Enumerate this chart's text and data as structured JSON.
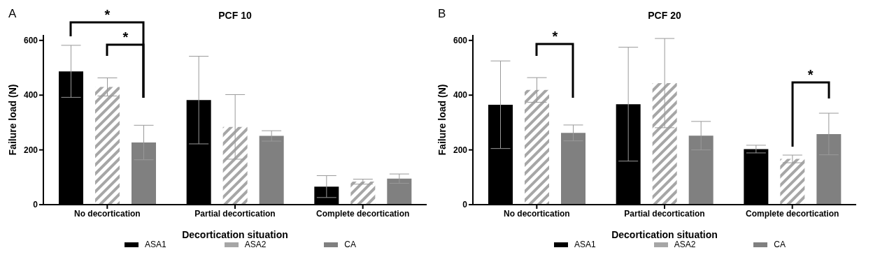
{
  "chart_data": [
    {
      "type": "bar",
      "title": "PCF  10",
      "xlabel": "Decortication situation",
      "ylabel": "Failure load (N)",
      "annotations": [
        "A",
        "*",
        "*"
      ],
      "categories": [
        "No decortication",
        "Partial decortication",
        "Complete decortication"
      ],
      "ylim": [
        0,
        620
      ],
      "yticks": [
        0,
        200,
        400,
        600
      ],
      "legend": "bottom",
      "series": [
        {
          "name": "ASA1",
          "color": "#000000",
          "values": [
            487,
            382,
            66
          ],
          "errors": [
            95,
            160,
            40
          ]
        },
        {
          "name": "ASA2",
          "color": "#a6a6a6",
          "values": [
            430,
            284,
            84
          ],
          "errors": [
            33,
            118,
            9
          ]
        },
        {
          "name": "CA",
          "color": "#808080",
          "values": [
            227,
            251,
            95
          ],
          "errors": [
            63,
            19,
            17
          ]
        }
      ]
    },
    {
      "type": "bar",
      "title": "PCF  20",
      "xlabel": "Decortication situation",
      "ylabel": "Failure load (N)",
      "annotations": [
        "B",
        "*",
        "*"
      ],
      "categories": [
        "No decortication",
        "Partial decortication",
        "Complete decortication"
      ],
      "ylim": [
        0,
        620
      ],
      "yticks": [
        0,
        200,
        400,
        600
      ],
      "legend": "bottom",
      "series": [
        {
          "name": "ASA1",
          "color": "#000000",
          "values": [
            365,
            367,
            203
          ],
          "errors": [
            160,
            208,
            14
          ]
        },
        {
          "name": "ASA2",
          "color": "#a6a6a6",
          "values": [
            419,
            444,
            167
          ],
          "errors": [
            45,
            163,
            14
          ]
        },
        {
          "name": "CA",
          "color": "#808080",
          "values": [
            262,
            252,
            258
          ],
          "errors": [
            29,
            52,
            76
          ]
        }
      ]
    }
  ]
}
